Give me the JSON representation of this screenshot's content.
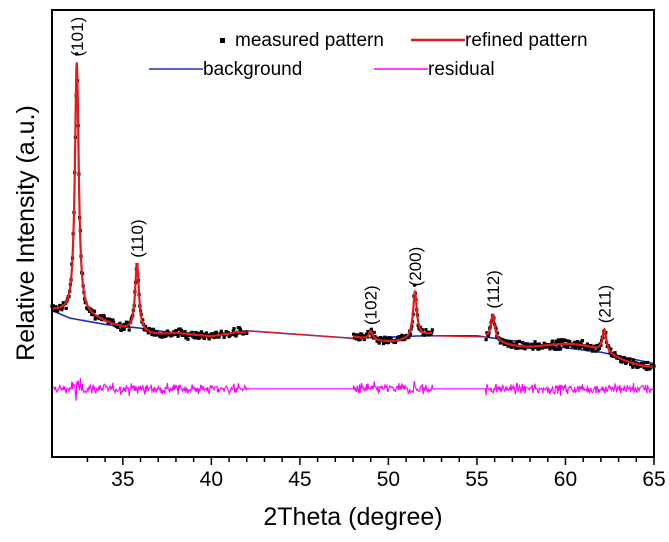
{
  "chart_data": {
    "type": "line",
    "title": "",
    "xlabel": "2Theta (degree)",
    "ylabel": "Relative Intensity (a.u.)",
    "xlim": [
      31,
      65
    ],
    "ylim": [
      -0.35,
      1.42
    ],
    "xticks": [
      "35",
      "40",
      "45",
      "50",
      "55",
      "60",
      "65"
    ],
    "ytick_labels_shown": false,
    "grid": false,
    "legend_position": "top",
    "colors": {
      "measured": "#000000",
      "refined": "#e31a1c",
      "background": "#1f2fb4",
      "residual": "#ff00ff"
    },
    "peaks": [
      {
        "label": "(101)",
        "x": 32.4,
        "intensity": 1.0
      },
      {
        "label": "(110)",
        "x": 35.8,
        "intensity": 0.27
      },
      {
        "label": "(102)",
        "x": 49.0,
        "intensity": 0.035
      },
      {
        "label": "(200)",
        "x": 51.5,
        "intensity": 0.18
      },
      {
        "label": "(112)",
        "x": 55.9,
        "intensity": 0.1
      },
      {
        "label": "(211)",
        "x": 62.2,
        "intensity": 0.09
      }
    ],
    "background_curve": [
      [
        31.0,
        0.23
      ],
      [
        32.0,
        0.2
      ],
      [
        34.0,
        0.175
      ],
      [
        36.0,
        0.16
      ],
      [
        38.0,
        0.14
      ],
      [
        40.0,
        0.13
      ],
      [
        42.0,
        0.15
      ],
      [
        48.0,
        0.12
      ],
      [
        52.0,
        0.13
      ],
      [
        55.0,
        0.13
      ],
      [
        58.0,
        0.1
      ],
      [
        62.0,
        0.065
      ],
      [
        65.0,
        0.02
      ]
    ],
    "measured_gaps": [
      [
        42.0,
        48.0
      ],
      [
        52.5,
        55.5
      ]
    ],
    "residual_offset": -0.08,
    "series": [
      {
        "name": "measured pattern",
        "style": "dots",
        "color": "#000000"
      },
      {
        "name": "refined pattern",
        "style": "line",
        "color": "#e31a1c"
      },
      {
        "name": "background",
        "style": "line",
        "color": "#1f2fb4"
      },
      {
        "name": "residual",
        "style": "line",
        "color": "#ff00ff"
      }
    ]
  }
}
